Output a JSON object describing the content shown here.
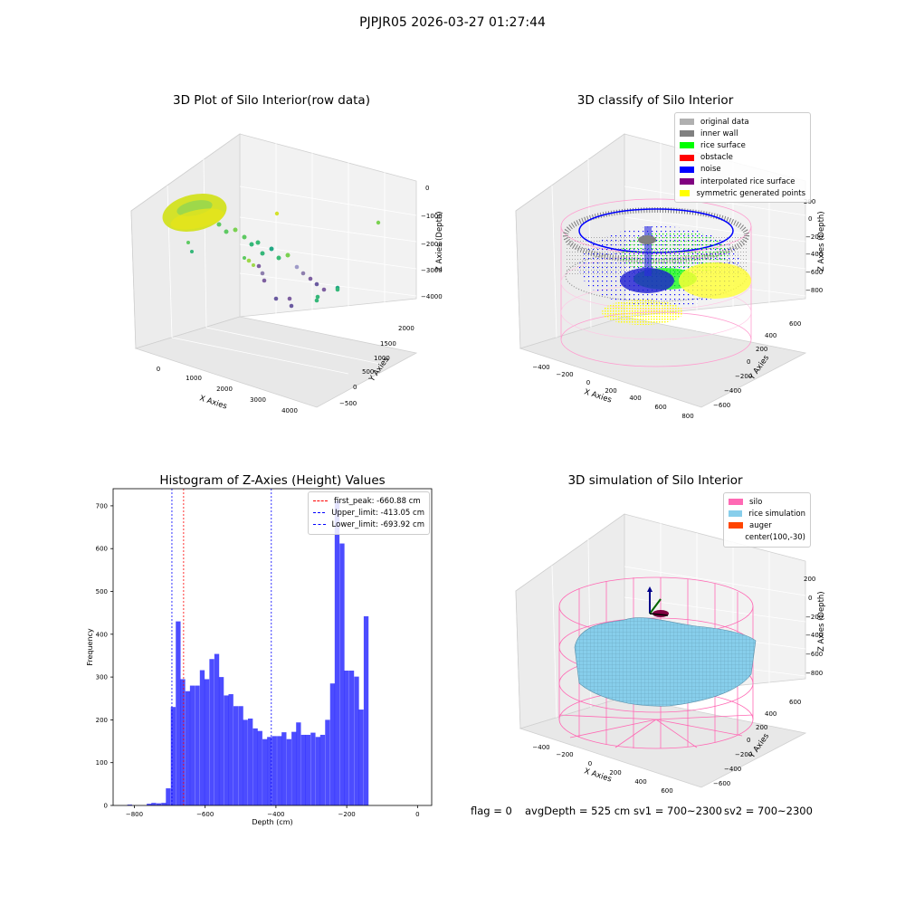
{
  "suptitle": "PJPJR05 2026-03-27 01:27:44",
  "panels": {
    "raw": {
      "title": "3D Plot of Silo Interior(row data)",
      "xlabel": "X Axies",
      "ylabel": "Y Axies",
      "zlabel": "Z Axies (Depth)",
      "xticks": [
        "0",
        "1000",
        "2000",
        "3000",
        "4000"
      ],
      "yticks": [
        "−500",
        "0",
        "500",
        "1000",
        "1500",
        "2000"
      ],
      "zticks": [
        "0",
        "−1000",
        "−2000",
        "−3000",
        "−4000"
      ]
    },
    "classify": {
      "title": "3D classify of Silo Interior",
      "xlabel": "X Axies",
      "ylabel": "Y Axies",
      "zlabel": "Z Axies (Depth)",
      "xticks": [
        "−400",
        "−200",
        "0",
        "200",
        "400",
        "600",
        "800"
      ],
      "yticks": [
        "−600",
        "−400",
        "−200",
        "0",
        "200",
        "400",
        "600"
      ],
      "zticks": [
        "200",
        "0",
        "−200",
        "−400",
        "−600",
        "−800"
      ],
      "legend": [
        {
          "label": "original data",
          "color": "#b0b0b0"
        },
        {
          "label": "inner wall",
          "color": "#808080"
        },
        {
          "label": "rice surface",
          "color": "#00ff00"
        },
        {
          "label": "obstacle",
          "color": "#ff0000"
        },
        {
          "label": "noise",
          "color": "#0000ff"
        },
        {
          "label": "interpolated rice surface",
          "color": "#800080"
        },
        {
          "label": "symmetric generated points",
          "color": "#ffff00"
        }
      ]
    },
    "simulation": {
      "title": "3D simulation of Silo Interior",
      "xlabel": "X Axies",
      "ylabel": "Y Axies",
      "zlabel": "Z Axies (Depth)",
      "xticks": [
        "−400",
        "−200",
        "0",
        "200",
        "400",
        "600"
      ],
      "yticks": [
        "−600",
        "−400",
        "−200",
        "0",
        "200",
        "400",
        "600"
      ],
      "zticks": [
        "200",
        "0",
        "−200",
        "−400",
        "−600",
        "−800"
      ],
      "legend": [
        {
          "label": "silo",
          "color": "#ff69b4"
        },
        {
          "label": "rice simulation",
          "color": "#87ceeb"
        },
        {
          "label": "auger",
          "color": "#ff4500"
        },
        {
          "label": "center(100,-30)",
          "color": ""
        }
      ]
    }
  },
  "footer": {
    "flag": "flag = 0",
    "avgdepth": "avgDepth = 525 cm",
    "sv1": "sv1 = 700~2300",
    "sv2": "sv2 = 700~2300"
  },
  "chart_data": [
    {
      "type": "bar",
      "title": "Histogram of Z-Axies (Height) Values",
      "xlabel": "Depth (cm)",
      "ylabel": "Frequency",
      "xlim": [
        -860,
        40
      ],
      "ylim": [
        0,
        740
      ],
      "xticks": [
        -800,
        -600,
        -400,
        -200,
        0
      ],
      "yticks": [
        0,
        100,
        200,
        300,
        400,
        500,
        600,
        700
      ],
      "bar_color": "#0000ff",
      "bin_width": 13.6,
      "bins": [
        {
          "x": -820,
          "value": 2
        },
        {
          "x": -806,
          "value": 0
        },
        {
          "x": -792,
          "value": 0
        },
        {
          "x": -779,
          "value": 0
        },
        {
          "x": -765,
          "value": 4
        },
        {
          "x": -752,
          "value": 6
        },
        {
          "x": -738,
          "value": 5
        },
        {
          "x": -724,
          "value": 6
        },
        {
          "x": -711,
          "value": 40
        },
        {
          "x": -697,
          "value": 230
        },
        {
          "x": -683,
          "value": 430
        },
        {
          "x": -670,
          "value": 295
        },
        {
          "x": -656,
          "value": 267
        },
        {
          "x": -643,
          "value": 280
        },
        {
          "x": -629,
          "value": 280
        },
        {
          "x": -615,
          "value": 316
        },
        {
          "x": -602,
          "value": 295
        },
        {
          "x": -588,
          "value": 342
        },
        {
          "x": -574,
          "value": 354
        },
        {
          "x": -561,
          "value": 300
        },
        {
          "x": -547,
          "value": 257
        },
        {
          "x": -534,
          "value": 260
        },
        {
          "x": -520,
          "value": 232
        },
        {
          "x": -506,
          "value": 232
        },
        {
          "x": -493,
          "value": 200
        },
        {
          "x": -479,
          "value": 203
        },
        {
          "x": -465,
          "value": 180
        },
        {
          "x": -452,
          "value": 174
        },
        {
          "x": -438,
          "value": 155
        },
        {
          "x": -425,
          "value": 160
        },
        {
          "x": -411,
          "value": 162
        },
        {
          "x": -397,
          "value": 162
        },
        {
          "x": -384,
          "value": 171
        },
        {
          "x": -370,
          "value": 155
        },
        {
          "x": -356,
          "value": 172
        },
        {
          "x": -343,
          "value": 194
        },
        {
          "x": -329,
          "value": 165
        },
        {
          "x": -316,
          "value": 165
        },
        {
          "x": -302,
          "value": 170
        },
        {
          "x": -288,
          "value": 160
        },
        {
          "x": -275,
          "value": 165
        },
        {
          "x": -261,
          "value": 200
        },
        {
          "x": -247,
          "value": 285
        },
        {
          "x": -234,
          "value": 712
        },
        {
          "x": -220,
          "value": 612
        },
        {
          "x": -207,
          "value": 315
        },
        {
          "x": -193,
          "value": 315
        },
        {
          "x": -179,
          "value": 301
        },
        {
          "x": -166,
          "value": 224
        },
        {
          "x": -152,
          "value": 442
        }
      ],
      "vlines": [
        {
          "label": "first_peak: -660.88 cm",
          "x": -660.88,
          "color": "#ff0000"
        },
        {
          "label": "Upper_limit: -413.05 cm",
          "x": -413.05,
          "color": "#0000ff"
        },
        {
          "label": "Lower_limit: -693.92 cm",
          "x": -693.92,
          "color": "#0000ff"
        }
      ],
      "legend_position": "upper right"
    }
  ]
}
